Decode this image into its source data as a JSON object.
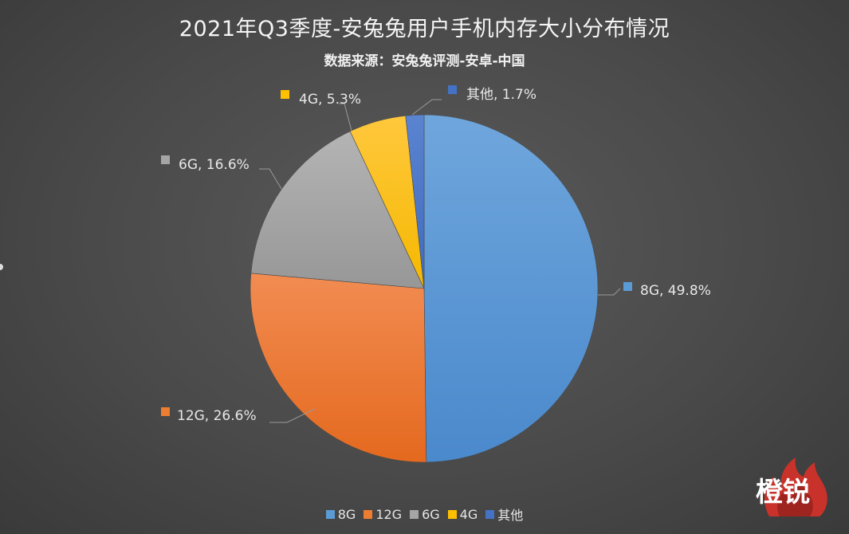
{
  "title": "2021年Q3季度-安兔兔用户手机内存大小分布情况",
  "subtitle": "数据来源：安兔兔评测-安卓-中国",
  "watermark": "橙锐",
  "chart_data": {
    "type": "pie",
    "title": "2021年Q3季度-安兔兔用户手机内存大小分布情况",
    "subtitle": "数据来源：安兔兔评测-安卓-中国",
    "categories": [
      "8G",
      "12G",
      "6G",
      "4G",
      "其他"
    ],
    "values": [
      49.8,
      26.6,
      16.6,
      5.3,
      1.7
    ],
    "unit": "%",
    "colors": [
      "#5b9bd5",
      "#ed7d31",
      "#a5a5a5",
      "#ffc000",
      "#4472c4"
    ],
    "data_labels": [
      "8G, 49.8%",
      "12G, 26.6%",
      "6G, 16.6%",
      "4G, 5.3%",
      "其他, 1.7%"
    ],
    "start_angle": "12 o'clock, clockwise",
    "legend_position": "bottom"
  },
  "legend": [
    {
      "label": "8G",
      "color": "#5b9bd5"
    },
    {
      "label": "12G",
      "color": "#ed7d31"
    },
    {
      "label": "6G",
      "color": "#a5a5a5"
    },
    {
      "label": "4G",
      "color": "#ffc000"
    },
    {
      "label": "其他",
      "color": "#4472c4"
    }
  ]
}
